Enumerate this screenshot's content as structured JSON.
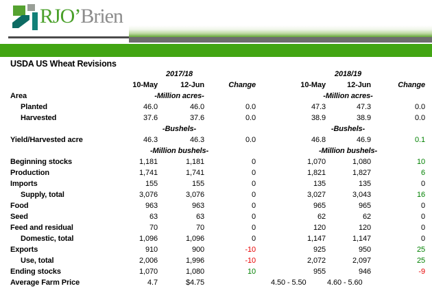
{
  "header": {
    "logo": {
      "icon": "rjo-logo-mark-icon",
      "primary": "RJO’",
      "secondary": "Brien"
    },
    "brand_colors": {
      "green_bar": "#42a513",
      "gray_bar": "#6d6d6d",
      "logo_green": "#4aa02a",
      "logo_gray": "#8c8c8c"
    }
  },
  "title": "USDA US Wheat Revisions",
  "table": {
    "groups": [
      {
        "year": "2017/18"
      },
      {
        "year": "2018/19"
      }
    ],
    "col_headers": [
      "10-May",
      "12-Jun",
      "Change"
    ],
    "colors": {
      "positive": "#008000",
      "negative": "#e80000"
    },
    "rows": [
      {
        "type": "unit",
        "label": "Area",
        "unit": "-Million acres-"
      },
      {
        "type": "data",
        "label": "Planted",
        "indent": 1,
        "g1": [
          "46.0",
          "46.0",
          "0.0"
        ],
        "g2": [
          "47.3",
          "47.3",
          "0.0"
        ]
      },
      {
        "type": "data",
        "label": "Harvested",
        "indent": 1,
        "g1": [
          "37.6",
          "37.6",
          "0.0"
        ],
        "g2": [
          "38.9",
          "38.9",
          "0.0"
        ]
      },
      {
        "type": "unit",
        "label": "",
        "unit": "-Bushels-"
      },
      {
        "type": "data",
        "label": "Yield/Harvested acre",
        "indent": 0,
        "g1": [
          "46.3",
          "46.3",
          "0.0"
        ],
        "g2": [
          "46.8",
          "46.9",
          "0.1"
        ],
        "c2": "pos"
      },
      {
        "type": "unit",
        "label": "",
        "unit": "-Million bushels-"
      },
      {
        "type": "data",
        "label": "Beginning stocks",
        "indent": 0,
        "g1": [
          "1,181",
          "1,181",
          "0"
        ],
        "g2": [
          "1,070",
          "1,080",
          "10"
        ],
        "c2": "pos"
      },
      {
        "type": "data",
        "label": "Production",
        "indent": 0,
        "g1": [
          "1,741",
          "1,741",
          "0"
        ],
        "g2": [
          "1,821",
          "1,827",
          "6"
        ],
        "c2": "pos"
      },
      {
        "type": "data",
        "label": "Imports",
        "indent": 0,
        "g1": [
          "155",
          "155",
          "0"
        ],
        "g2": [
          "135",
          "135",
          "0"
        ]
      },
      {
        "type": "data",
        "label": "Supply, total",
        "indent": 1,
        "g1": [
          "3,076",
          "3,076",
          "0"
        ],
        "g2": [
          "3,027",
          "3,043",
          "16"
        ],
        "c2": "pos"
      },
      {
        "type": "data",
        "label": "Food",
        "indent": 0,
        "g1": [
          "963",
          "963",
          "0"
        ],
        "g2": [
          "965",
          "965",
          "0"
        ]
      },
      {
        "type": "data",
        "label": "Seed",
        "indent": 0,
        "g1": [
          "63",
          "63",
          "0"
        ],
        "g2": [
          "62",
          "62",
          "0"
        ]
      },
      {
        "type": "data",
        "label": "Feed and residual",
        "indent": 0,
        "g1": [
          "70",
          "70",
          "0"
        ],
        "g2": [
          "120",
          "120",
          "0"
        ]
      },
      {
        "type": "data",
        "label": "Domestic, total",
        "indent": 1,
        "g1": [
          "1,096",
          "1,096",
          "0"
        ],
        "g2": [
          "1,147",
          "1,147",
          "0"
        ]
      },
      {
        "type": "data",
        "label": "Exports",
        "indent": 0,
        "g1": [
          "910",
          "900",
          "-10"
        ],
        "c1": "neg",
        "g2": [
          "925",
          "950",
          "25"
        ],
        "c2": "pos"
      },
      {
        "type": "data",
        "label": "Use, total",
        "indent": 1,
        "g1": [
          "2,006",
          "1,996",
          "-10"
        ],
        "c1": "neg",
        "g2": [
          "2,072",
          "2,097",
          "25"
        ],
        "c2": "pos"
      },
      {
        "type": "data",
        "label": "Ending stocks",
        "indent": 0,
        "g1": [
          "1,070",
          "1,080",
          "10"
        ],
        "c1": "pos",
        "g2": [
          "955",
          "946",
          "-9"
        ],
        "c2": "neg"
      },
      {
        "type": "data",
        "label": "Average Farm Price",
        "indent": 0,
        "g1": [
          "4.7",
          "$4.75",
          ""
        ],
        "g2": [
          "4.50 - 5.50",
          "4.60 - 5.60",
          ""
        ],
        "range": true
      }
    ]
  }
}
